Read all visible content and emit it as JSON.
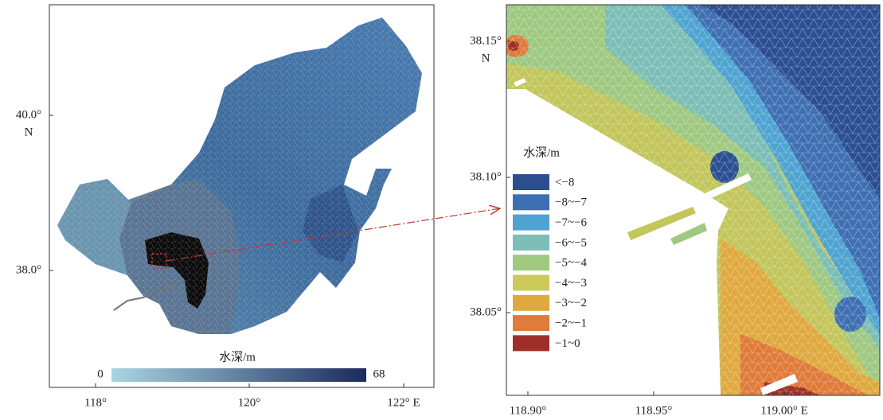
{
  "left_map": {
    "x_ticks": [
      "118°",
      "120°",
      "122° E"
    ],
    "y_ticks": [
      [
        "40.0°",
        "N"
      ],
      [
        "38.0°"
      ]
    ],
    "colorbar": {
      "title": "水深/m",
      "min_label": "0",
      "max_label": "68",
      "colors": [
        "#a9d6e3",
        "#1b2a5c"
      ]
    }
  },
  "right_map": {
    "x_ticks": [
      "118.90°",
      "118.95°",
      "119.00° E"
    ],
    "y_ticks": [
      [
        "38.15°",
        "N"
      ],
      [
        "38.10°"
      ],
      [
        "38.05°"
      ]
    ],
    "legend": {
      "title": "水深/m",
      "items": [
        {
          "label": "<−8",
          "color": "#2b4e91"
        },
        {
          "label": "−8~−7",
          "color": "#3f6fb3"
        },
        {
          "label": "−7~−6",
          "color": "#4ea3d0"
        },
        {
          "label": "−6~−5",
          "color": "#7dbfb6"
        },
        {
          "label": "−5~−4",
          "color": "#a0c980"
        },
        {
          "label": "−4~−3",
          "color": "#cac95a"
        },
        {
          "label": "−3~−2",
          "color": "#e0a93f"
        },
        {
          "label": "−2~−1",
          "color": "#e07b3a"
        },
        {
          "label": "−1~0",
          "color": "#9d2f28"
        }
      ]
    }
  }
}
